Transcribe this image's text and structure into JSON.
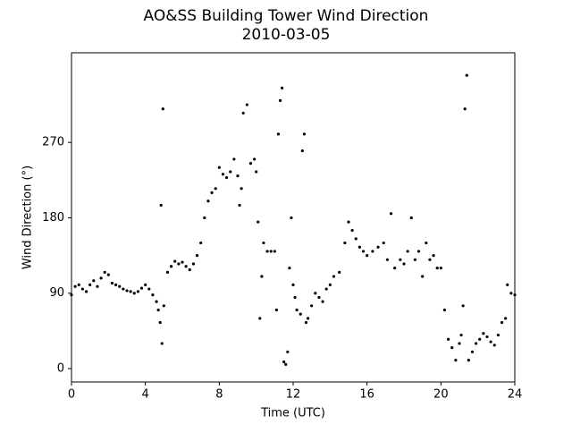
{
  "chart_data": {
    "type": "scatter",
    "title": "AO&SS Building Tower Wind Direction",
    "subtitle": "2010-03-05",
    "x_label": "Time (UTC)",
    "y_label": "Wind Direction (°)",
    "color": "#000000",
    "xlim": [
      0,
      24
    ],
    "xticks": [
      0,
      4,
      8,
      12,
      16,
      20,
      24
    ],
    "ylim": [
      -16,
      377
    ],
    "yticks": [
      0,
      90,
      180,
      270
    ],
    "x": [
      0,
      0.2,
      0.4,
      0.6,
      0.8,
      1.0,
      1.2,
      1.4,
      1.6,
      1.8,
      2.0,
      2.2,
      2.4,
      2.6,
      2.8,
      3.0,
      3.2,
      3.4,
      3.6,
      3.8,
      4.0,
      4.2,
      4.4,
      4.6,
      4.7,
      4.8,
      4.85,
      4.9,
      4.95,
      5.0,
      5.2,
      5.4,
      5.6,
      5.8,
      6.0,
      6.2,
      6.4,
      6.6,
      6.8,
      7.0,
      7.2,
      7.4,
      7.6,
      7.8,
      8.0,
      8.2,
      8.4,
      8.6,
      8.8,
      9.0,
      9.1,
      9.2,
      9.3,
      9.5,
      9.7,
      9.9,
      10.0,
      10.1,
      10.2,
      10.3,
      10.4,
      10.6,
      10.8,
      11.0,
      11.1,
      11.2,
      11.3,
      11.4,
      11.5,
      11.6,
      11.7,
      11.8,
      11.9,
      12.0,
      12.1,
      12.2,
      12.4,
      12.5,
      12.6,
      12.7,
      12.8,
      13.0,
      13.2,
      13.4,
      13.6,
      13.8,
      14.0,
      14.2,
      14.5,
      14.8,
      15.0,
      15.2,
      15.4,
      15.6,
      15.8,
      16.0,
      16.3,
      16.6,
      16.9,
      17.1,
      17.3,
      17.5,
      17.8,
      18.0,
      18.2,
      18.4,
      18.6,
      18.8,
      19.0,
      19.2,
      19.4,
      19.6,
      19.8,
      20.0,
      20.2,
      20.4,
      20.6,
      20.8,
      21.0,
      21.1,
      21.2,
      21.3,
      21.4,
      21.5,
      21.7,
      21.9,
      22.1,
      22.3,
      22.5,
      22.7,
      22.9,
      23.1,
      23.3,
      23.5,
      23.6,
      23.8,
      24.0
    ],
    "values": [
      88,
      98,
      100,
      95,
      92,
      100,
      105,
      98,
      108,
      115,
      112,
      102,
      100,
      98,
      95,
      93,
      92,
      90,
      92,
      96,
      100,
      95,
      88,
      80,
      70,
      55,
      195,
      30,
      310,
      75,
      115,
      122,
      128,
      125,
      127,
      122,
      118,
      125,
      135,
      150,
      180,
      200,
      210,
      215,
      240,
      232,
      228,
      235,
      250,
      230,
      195,
      215,
      305,
      315,
      245,
      250,
      235,
      175,
      60,
      110,
      150,
      140,
      140,
      140,
      70,
      280,
      320,
      335,
      8,
      5,
      20,
      120,
      180,
      100,
      85,
      70,
      65,
      260,
      280,
      55,
      60,
      75,
      90,
      85,
      80,
      95,
      100,
      110,
      115,
      150,
      175,
      165,
      155,
      145,
      140,
      135,
      140,
      145,
      150,
      130,
      185,
      120,
      130,
      125,
      140,
      180,
      130,
      140,
      110,
      150,
      130,
      135,
      120,
      120,
      70,
      35,
      25,
      10,
      30,
      40,
      75,
      310,
      350,
      10,
      20,
      30,
      35,
      42,
      38,
      32,
      28,
      40,
      55,
      60,
      100,
      90,
      88
    ]
  }
}
